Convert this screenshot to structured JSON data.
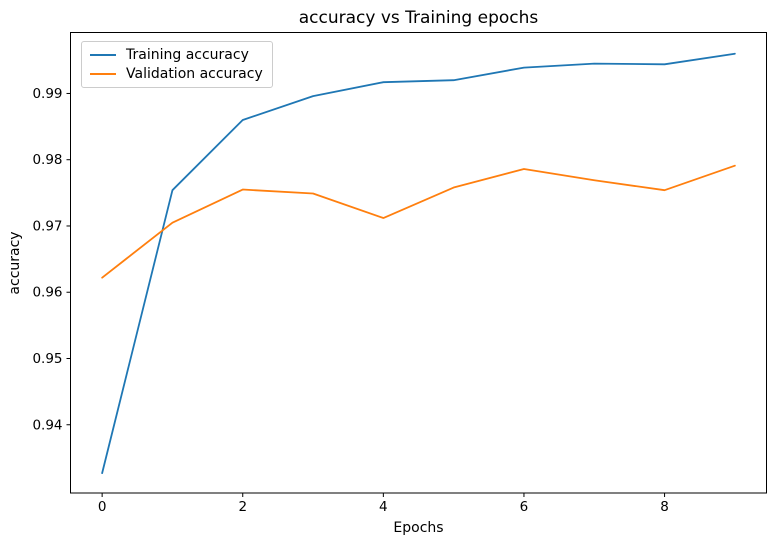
{
  "figure": {
    "title": "accuracy vs Training epochs",
    "xlabel": "Epochs",
    "ylabel": "accuracy"
  },
  "legend": {
    "items": [
      {
        "label": "Training accuracy",
        "color": "#1f77b4"
      },
      {
        "label": "Validation accuracy",
        "color": "#ff7f0e"
      }
    ]
  },
  "chart_data": {
    "type": "line",
    "title": "accuracy vs Training epochs",
    "xlabel": "Epochs",
    "ylabel": "accuracy",
    "x": [
      0,
      1,
      2,
      3,
      4,
      5,
      6,
      7,
      8,
      9
    ],
    "series": [
      {
        "name": "Training accuracy",
        "color": "#1f77b4",
        "values": [
          0.9327,
          0.9754,
          0.986,
          0.9896,
          0.9917,
          0.992,
          0.9939,
          0.9945,
          0.9944,
          0.996
        ]
      },
      {
        "name": "Validation accuracy",
        "color": "#ff7f0e",
        "values": [
          0.9622,
          0.9705,
          0.9755,
          0.9749,
          0.9712,
          0.9758,
          0.9786,
          0.9769,
          0.9754,
          0.9791
        ]
      }
    ],
    "xticks": [
      0,
      2,
      4,
      6,
      8
    ],
    "yticks": [
      0.94,
      0.95,
      0.96,
      0.97,
      0.98,
      0.99
    ],
    "xlim": [
      -0.45,
      9.45
    ],
    "ylim": [
      0.9297,
      0.9992
    ],
    "grid": false,
    "legend_position": "upper left",
    "line_width": 1.8,
    "axes_color": "#000000"
  }
}
